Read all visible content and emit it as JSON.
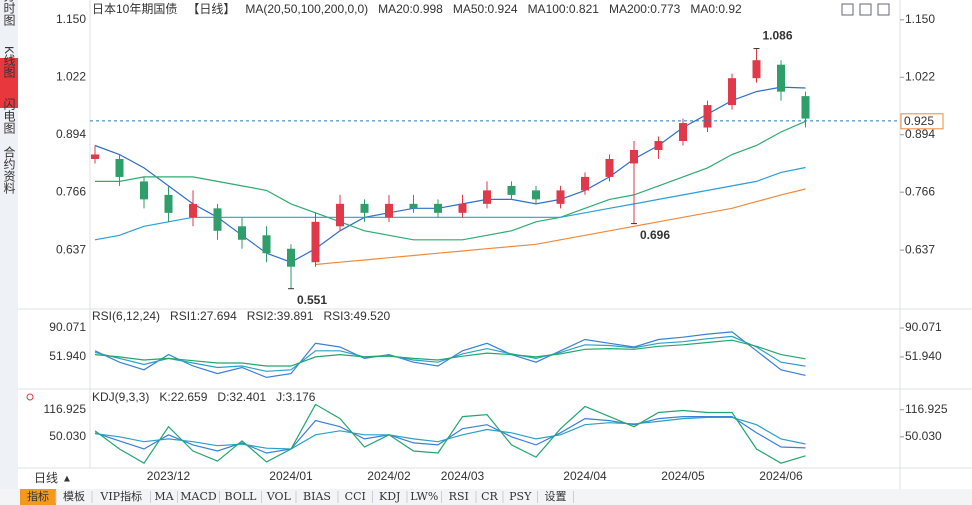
{
  "sidebar_tabs": [
    "分时图",
    "K线图",
    "闪电图",
    "合约资料"
  ],
  "period_button": "日线",
  "toolbar": [
    "指标",
    "模板",
    "VIP指标",
    "MA",
    "MACD",
    "BOLL",
    "VOL",
    "BIAS",
    "CCI",
    "KDJ",
    "LW%",
    "RSI",
    "CR",
    "PSY",
    "设置"
  ],
  "chart_data": [
    {
      "type": "candlestick",
      "title": "日本10年期国债",
      "period": "【日线】",
      "legend_title": "MA(20,50,100,200,0,0)",
      "categories": [
        null,
        null,
        null,
        "2023/12",
        null,
        null,
        null,
        null,
        "2024/01",
        null,
        null,
        null,
        "2024/02",
        null,
        null,
        "2024/03",
        null,
        null,
        null,
        null,
        "2024/04",
        null,
        null,
        null,
        "2024/05",
        null,
        null,
        null,
        "2024/06",
        null
      ],
      "open": [
        0.84,
        0.84,
        0.79,
        0.76,
        0.71,
        0.73,
        0.69,
        0.67,
        0.64,
        0.61,
        0.69,
        0.74,
        0.71,
        0.74,
        0.74,
        0.72,
        0.74,
        0.78,
        0.77,
        0.74,
        0.77,
        0.8,
        0.83,
        0.86,
        0.88,
        0.91,
        0.96,
        1.02,
        1.05,
        0.98
      ],
      "high": [
        0.87,
        0.85,
        0.8,
        0.78,
        0.77,
        0.74,
        0.71,
        0.69,
        0.65,
        0.72,
        0.76,
        0.75,
        0.76,
        0.76,
        0.75,
        0.76,
        0.79,
        0.79,
        0.78,
        0.78,
        0.81,
        0.85,
        0.88,
        0.89,
        0.93,
        0.97,
        1.03,
        1.086,
        1.06,
        0.99
      ],
      "low": [
        0.83,
        0.78,
        0.73,
        0.7,
        0.69,
        0.66,
        0.64,
        0.61,
        0.551,
        0.6,
        0.68,
        0.7,
        0.7,
        0.72,
        0.71,
        0.71,
        0.73,
        0.75,
        0.74,
        0.73,
        0.76,
        0.79,
        0.696,
        0.84,
        0.87,
        0.9,
        0.95,
        1.01,
        0.97,
        0.91
      ],
      "close": [
        0.85,
        0.8,
        0.75,
        0.72,
        0.74,
        0.68,
        0.66,
        0.63,
        0.6,
        0.7,
        0.74,
        0.72,
        0.74,
        0.73,
        0.72,
        0.74,
        0.77,
        0.76,
        0.75,
        0.77,
        0.8,
        0.84,
        0.86,
        0.88,
        0.92,
        0.96,
        1.02,
        1.06,
        0.99,
        0.93
      ],
      "up_color": "#e0394a",
      "down_color": "#2e9e6a",
      "series": [
        {
          "name": "MA20:0.998",
          "color": "#2f6fc9",
          "values": [
            0.87,
            0.85,
            0.82,
            0.78,
            0.74,
            0.71,
            0.67,
            0.63,
            0.61,
            0.64,
            0.68,
            0.71,
            0.72,
            0.73,
            0.73,
            0.74,
            0.75,
            0.75,
            0.74,
            0.75,
            0.77,
            0.8,
            0.84,
            0.87,
            0.91,
            0.94,
            0.97,
            0.99,
            1.0,
            0.998
          ]
        },
        {
          "name": "MA50:0.924",
          "color": "#2eab6f",
          "values": [
            0.79,
            0.79,
            0.8,
            0.8,
            0.8,
            0.79,
            0.78,
            0.77,
            0.74,
            0.72,
            0.7,
            0.68,
            0.67,
            0.66,
            0.66,
            0.66,
            0.67,
            0.68,
            0.7,
            0.71,
            0.73,
            0.75,
            0.76,
            0.78,
            0.8,
            0.82,
            0.85,
            0.87,
            0.9,
            0.924
          ]
        },
        {
          "name": "MA100:0.821",
          "color": "#2a9fd8",
          "values": [
            0.66,
            0.67,
            0.69,
            0.7,
            0.71,
            0.71,
            0.71,
            0.71,
            0.71,
            0.71,
            0.71,
            0.71,
            0.71,
            0.71,
            0.71,
            0.71,
            0.71,
            0.71,
            0.71,
            0.71,
            0.72,
            0.73,
            0.74,
            0.75,
            0.76,
            0.77,
            0.78,
            0.79,
            0.81,
            0.821
          ]
        },
        {
          "name": "MA200:0.773",
          "color": "#f08a3c",
          "values": [
            null,
            null,
            null,
            null,
            null,
            null,
            null,
            null,
            null,
            0.605,
            0.61,
            0.615,
            0.62,
            0.625,
            0.63,
            0.635,
            0.64,
            0.645,
            0.65,
            0.66,
            0.67,
            0.68,
            0.69,
            0.7,
            0.71,
            0.72,
            0.73,
            0.745,
            0.76,
            0.773
          ]
        }
      ],
      "extra_legend": [
        {
          "name": "MA0:0.92",
          "color": "#e38be0"
        }
      ],
      "last_price": 0.925,
      "ylim": [
        0.508,
        1.183
      ],
      "yticks": [
        {
          "value": 1.15,
          "label": "1.150"
        },
        1.022,
        0.894,
        0.766,
        0.637
      ]
    },
    {
      "type": "line",
      "title": "RSI(6,12,24)",
      "series": [
        {
          "name": "RSI1:27.694",
          "color": "#3b7fd6",
          "values": [
            60,
            45,
            35,
            55,
            40,
            30,
            38,
            25,
            30,
            70,
            65,
            50,
            55,
            45,
            40,
            60,
            70,
            55,
            45,
            60,
            75,
            70,
            65,
            75,
            78,
            82,
            85,
            60,
            35,
            27.694
          ]
        },
        {
          "name": "RSI2:39.891",
          "color": "#2aa0c7",
          "values": [
            58,
            50,
            42,
            50,
            44,
            38,
            40,
            33,
            35,
            60,
            60,
            52,
            54,
            48,
            45,
            56,
            63,
            56,
            50,
            58,
            68,
            67,
            64,
            70,
            72,
            76,
            79,
            65,
            45,
            39.891
          ]
        },
        {
          "name": "RSI3:49.520",
          "color": "#22a66e",
          "values": [
            55,
            52,
            48,
            50,
            47,
            44,
            44,
            40,
            40,
            52,
            55,
            52,
            53,
            50,
            48,
            53,
            57,
            55,
            52,
            56,
            62,
            63,
            62,
            66,
            68,
            71,
            74,
            66,
            55,
            49.52
          ]
        }
      ],
      "ylim": [
        15,
        98
      ],
      "yticks": [
        90.071,
        {
          "value": 51.94,
          "label": "51.940"
        }
      ]
    },
    {
      "type": "line",
      "title": "KDJ(9,3,3)",
      "series": [
        {
          "name": "K:22.659",
          "color": "#3b7fd6",
          "values": [
            60,
            40,
            20,
            55,
            30,
            15,
            35,
            10,
            20,
            90,
            75,
            45,
            55,
            35,
            30,
            70,
            80,
            50,
            30,
            60,
            95,
            90,
            80,
            95,
            100,
            100,
            100,
            60,
            25,
            22.659
          ]
        },
        {
          "name": "D:32.401",
          "color": "#2aa0c7",
          "values": [
            58,
            50,
            38,
            45,
            38,
            28,
            32,
            22,
            20,
            55,
            65,
            55,
            55,
            45,
            38,
            55,
            68,
            60,
            45,
            55,
            80,
            85,
            82,
            88,
            95,
            98,
            98,
            80,
            45,
            32.401
          ]
        },
        {
          "name": "J:3.176",
          "color": "#22a66e",
          "values": [
            65,
            20,
            -15,
            75,
            15,
            -10,
            40,
            -12,
            20,
            130,
            95,
            25,
            55,
            15,
            10,
            100,
            105,
            30,
            0,
            70,
            125,
            100,
            75,
            110,
            115,
            110,
            110,
            20,
            -15,
            3.176
          ]
        }
      ],
      "ylim": [
        -22,
        136
      ],
      "yticks": [
        116.925,
        {
          "value": 50.03,
          "label": "50.030"
        }
      ]
    }
  ]
}
